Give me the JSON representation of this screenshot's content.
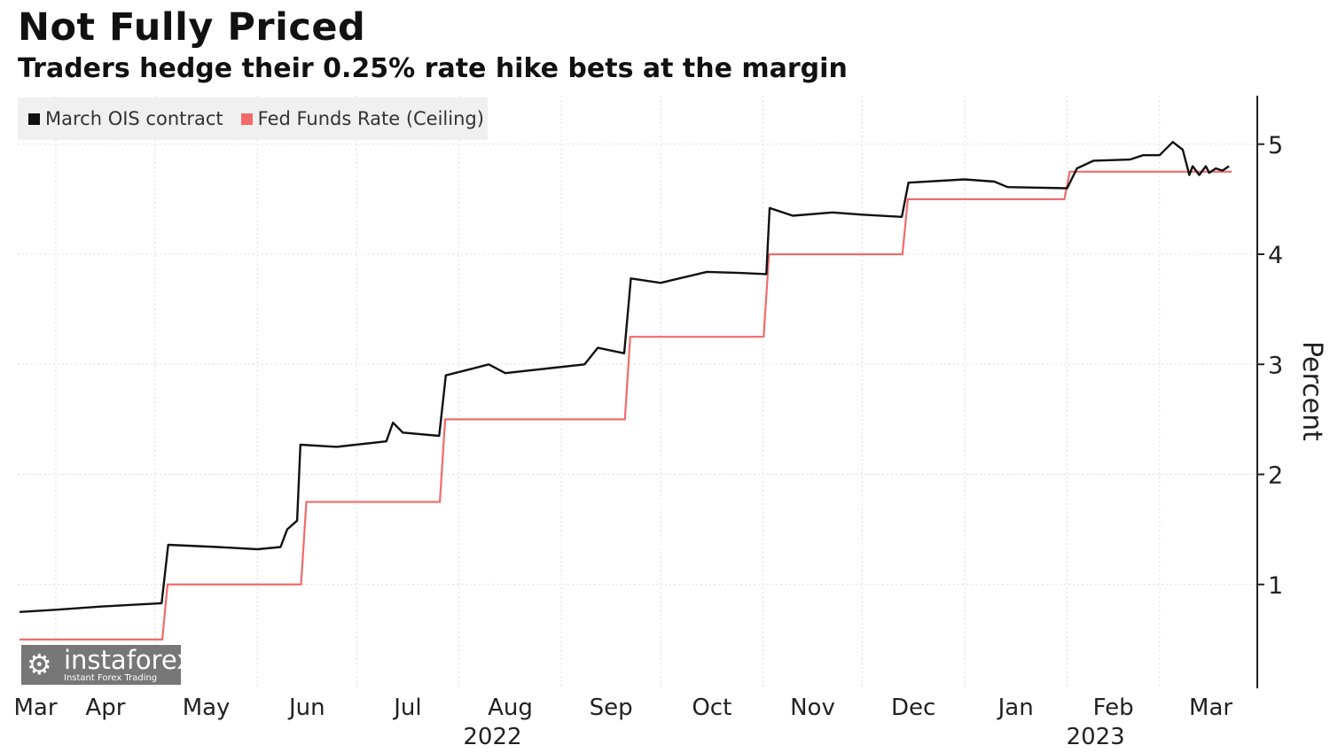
{
  "title": "Not Fully Priced",
  "subtitle": "Traders hedge their 0.25% rate hike bets at the margin",
  "watermark": {
    "name": "instaforex",
    "tagline": "Instant Forex Trading"
  },
  "chart_data": {
    "type": "line",
    "title": "Not Fully Priced",
    "subtitle": "Traders hedge their 0.25% rate hike bets at the margin",
    "ylabel": "Percent",
    "ylim": [
      0.05,
      5.4
    ],
    "yticks": [
      1,
      2,
      3,
      4,
      5
    ],
    "xlim": [
      "2022-03-21",
      "2023-03-22"
    ],
    "x_tick_labels": [
      {
        "label": "Mar",
        "year": ""
      },
      {
        "label": "Apr",
        "year": ""
      },
      {
        "label": "May",
        "year": ""
      },
      {
        "label": "Jun",
        "year": ""
      },
      {
        "label": "Jul",
        "year": ""
      },
      {
        "label": "Aug",
        "year": "2022"
      },
      {
        "label": "Sep",
        "year": ""
      },
      {
        "label": "Oct",
        "year": ""
      },
      {
        "label": "Nov",
        "year": ""
      },
      {
        "label": "Dec",
        "year": ""
      },
      {
        "label": "Jan",
        "year": ""
      },
      {
        "label": "Feb",
        "year": "2023"
      },
      {
        "label": "Mar",
        "year": ""
      }
    ],
    "grid": true,
    "y_axis_side": "right",
    "legend_position": "top-left",
    "series": [
      {
        "name": "March OIS contract",
        "color": "#111111",
        "points": [
          [
            "2022-03-21",
            0.75
          ],
          [
            "2022-04-01",
            0.77
          ],
          [
            "2022-04-15",
            0.8
          ],
          [
            "2022-05-03",
            0.83
          ],
          [
            "2022-05-05",
            1.36
          ],
          [
            "2022-05-20",
            1.34
          ],
          [
            "2022-06-01",
            1.32
          ],
          [
            "2022-06-08",
            1.34
          ],
          [
            "2022-06-10",
            1.5
          ],
          [
            "2022-06-13",
            1.58
          ],
          [
            "2022-06-14",
            2.27
          ],
          [
            "2022-06-25",
            2.25
          ],
          [
            "2022-07-10",
            2.3
          ],
          [
            "2022-07-12",
            2.47
          ],
          [
            "2022-07-15",
            2.38
          ],
          [
            "2022-07-26",
            2.35
          ],
          [
            "2022-07-28",
            2.9
          ],
          [
            "2022-08-05",
            2.96
          ],
          [
            "2022-08-10",
            3.0
          ],
          [
            "2022-08-15",
            2.92
          ],
          [
            "2022-08-30",
            2.97
          ],
          [
            "2022-09-08",
            3.0
          ],
          [
            "2022-09-12",
            3.15
          ],
          [
            "2022-09-20",
            3.1
          ],
          [
            "2022-09-22",
            3.78
          ],
          [
            "2022-10-01",
            3.74
          ],
          [
            "2022-10-15",
            3.84
          ],
          [
            "2022-10-25",
            3.83
          ],
          [
            "2022-11-02",
            3.82
          ],
          [
            "2022-11-03",
            4.42
          ],
          [
            "2022-11-10",
            4.35
          ],
          [
            "2022-11-22",
            4.38
          ],
          [
            "2022-12-01",
            4.36
          ],
          [
            "2022-12-13",
            4.34
          ],
          [
            "2022-12-15",
            4.65
          ],
          [
            "2023-01-01",
            4.68
          ],
          [
            "2023-01-10",
            4.66
          ],
          [
            "2023-01-14",
            4.61
          ],
          [
            "2023-02-01",
            4.6
          ],
          [
            "2023-02-04",
            4.78
          ],
          [
            "2023-02-09",
            4.85
          ],
          [
            "2023-02-20",
            4.86
          ],
          [
            "2023-02-24",
            4.9
          ],
          [
            "2023-03-01",
            4.9
          ],
          [
            "2023-03-05",
            5.02
          ],
          [
            "2023-03-08",
            4.95
          ],
          [
            "2023-03-10",
            4.72
          ],
          [
            "2023-03-11",
            4.8
          ],
          [
            "2023-03-13",
            4.72
          ],
          [
            "2023-03-15",
            4.8
          ],
          [
            "2023-03-16",
            4.74
          ],
          [
            "2023-03-18",
            4.78
          ],
          [
            "2023-03-20",
            4.76
          ],
          [
            "2023-03-22",
            4.8
          ]
        ]
      },
      {
        "name": "Fed Funds Rate (Ceiling)",
        "color": "#f26b6b",
        "steps": [
          [
            "2022-03-21",
            0.5
          ],
          [
            "2022-05-04",
            1.0
          ],
          [
            "2022-06-15",
            1.75
          ],
          [
            "2022-07-27",
            2.5
          ],
          [
            "2022-09-21",
            3.25
          ],
          [
            "2022-11-02",
            4.0
          ],
          [
            "2022-12-14",
            4.5
          ],
          [
            "2023-02-01",
            4.75
          ],
          [
            "2023-03-22",
            4.75
          ]
        ]
      }
    ]
  }
}
